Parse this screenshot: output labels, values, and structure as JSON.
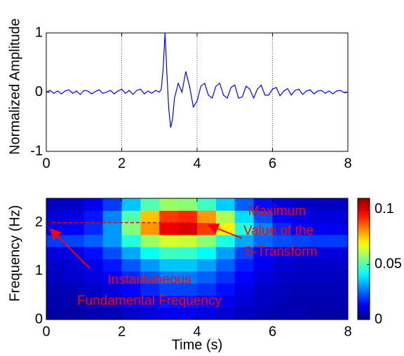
{
  "chart_data": [
    {
      "type": "line",
      "ylabel": "Normalized Amplitude",
      "xlim": [
        0,
        8
      ],
      "ylim": [
        -1,
        1
      ],
      "xticks": [
        0,
        2,
        4,
        6,
        8
      ],
      "yticks": [
        -1,
        0,
        1
      ],
      "grid": "x-dotted",
      "series": [
        {
          "color": "#0000ff",
          "x": [
            0,
            0.1,
            0.2,
            0.3,
            0.4,
            0.5,
            0.6,
            0.7,
            0.8,
            0.9,
            1.0,
            1.1,
            1.2,
            1.3,
            1.4,
            1.5,
            1.6,
            1.7,
            1.8,
            1.9,
            2.0,
            2.1,
            2.2,
            2.3,
            2.4,
            2.5,
            2.6,
            2.7,
            2.8,
            2.9,
            3.0,
            3.05,
            3.1,
            3.15,
            3.2,
            3.25,
            3.3,
            3.35,
            3.4,
            3.5,
            3.6,
            3.7,
            3.8,
            3.9,
            4.0,
            4.1,
            4.2,
            4.3,
            4.4,
            4.5,
            4.6,
            4.7,
            4.8,
            4.9,
            5.0,
            5.1,
            5.2,
            5.3,
            5.4,
            5.5,
            5.6,
            5.7,
            5.8,
            5.9,
            6.0,
            6.1,
            6.2,
            6.3,
            6.4,
            6.5,
            6.6,
            6.7,
            6.8,
            6.9,
            7.0,
            7.1,
            7.2,
            7.3,
            7.4,
            7.5,
            7.6,
            7.7,
            7.8,
            7.9,
            8.0
          ],
          "values": [
            0,
            0.03,
            -0.02,
            0.02,
            -0.03,
            0.02,
            0.04,
            -0.02,
            0.02,
            -0.04,
            0.03,
            0.02,
            -0.03,
            0.01,
            0.04,
            -0.02,
            0,
            0.03,
            -0.03,
            0.02,
            0.05,
            -0.02,
            0.03,
            -0.04,
            0.03,
            0.05,
            -0.03,
            0.02,
            -0.02,
            0.03,
            0,
            0.05,
            0.4,
            1.0,
            0.3,
            -0.3,
            -0.6,
            -0.45,
            -0.1,
            0.15,
            0,
            0.35,
            0.1,
            -0.25,
            -0.15,
            0.1,
            0.15,
            -0.05,
            -0.1,
            0.1,
            0.15,
            -0.05,
            -0.1,
            0.08,
            0.12,
            -0.1,
            -0.08,
            0.1,
            0.05,
            -0.1,
            0.05,
            0.12,
            -0.05,
            -0.05,
            0.05,
            0.08,
            -0.06,
            0.02,
            0.06,
            -0.05,
            0.03,
            0.05,
            -0.04,
            0.02,
            0.04,
            -0.03,
            0.02,
            0.03,
            -0.02,
            0.02,
            -0.03,
            0.02,
            0.03,
            -0.01,
            0
          ]
        }
      ]
    },
    {
      "type": "heatmap",
      "xlabel": "Time (s)",
      "ylabel": "Frequency (Hz)",
      "colormap": "jet",
      "xlim": [
        0,
        8
      ],
      "ylim": [
        0,
        2.5
      ],
      "xticks": [
        0,
        2,
        4,
        6,
        8
      ],
      "yticks": [
        0,
        1,
        2
      ],
      "clim": [
        0,
        0.11
      ],
      "cticks": [
        0,
        0.05,
        0.1
      ],
      "x": [
        0,
        0.5,
        1,
        1.5,
        2,
        2.5,
        3,
        3.5,
        4,
        4.5,
        5,
        5.5,
        6,
        6.5,
        7,
        7.5,
        8
      ],
      "y": [
        0,
        0.25,
        0.5,
        0.75,
        1,
        1.25,
        1.5,
        1.75,
        2,
        2.25,
        2.5
      ],
      "z": [
        [
          0.004,
          0.004,
          0.005,
          0.006,
          0.008,
          0.01,
          0.012,
          0.012,
          0.011,
          0.009,
          0.007,
          0.006,
          0.005,
          0.005,
          0.004,
          0.004
        ],
        [
          0.005,
          0.005,
          0.006,
          0.008,
          0.011,
          0.014,
          0.016,
          0.016,
          0.015,
          0.012,
          0.009,
          0.007,
          0.006,
          0.005,
          0.005,
          0.005
        ],
        [
          0.006,
          0.006,
          0.008,
          0.01,
          0.014,
          0.018,
          0.021,
          0.021,
          0.019,
          0.015,
          0.011,
          0.008,
          0.007,
          0.006,
          0.006,
          0.006
        ],
        [
          0.007,
          0.008,
          0.01,
          0.013,
          0.018,
          0.023,
          0.027,
          0.027,
          0.024,
          0.019,
          0.014,
          0.01,
          0.008,
          0.007,
          0.007,
          0.007
        ],
        [
          0.008,
          0.009,
          0.012,
          0.016,
          0.023,
          0.03,
          0.035,
          0.035,
          0.031,
          0.024,
          0.017,
          0.012,
          0.009,
          0.008,
          0.008,
          0.008
        ],
        [
          0.01,
          0.011,
          0.015,
          0.022,
          0.032,
          0.042,
          0.048,
          0.047,
          0.041,
          0.031,
          0.021,
          0.014,
          0.011,
          0.01,
          0.01,
          0.01
        ],
        [
          0.02,
          0.021,
          0.024,
          0.03,
          0.045,
          0.058,
          0.064,
          0.063,
          0.056,
          0.044,
          0.032,
          0.025,
          0.022,
          0.021,
          0.02,
          0.02
        ],
        [
          0.012,
          0.013,
          0.018,
          0.03,
          0.055,
          0.08,
          0.098,
          0.1,
          0.09,
          0.07,
          0.045,
          0.028,
          0.018,
          0.014,
          0.013,
          0.012
        ],
        [
          0.01,
          0.011,
          0.016,
          0.028,
          0.05,
          0.075,
          0.09,
          0.092,
          0.08,
          0.06,
          0.038,
          0.022,
          0.014,
          0.011,
          0.01,
          0.01
        ],
        [
          0.007,
          0.008,
          0.012,
          0.02,
          0.035,
          0.05,
          0.058,
          0.056,
          0.048,
          0.036,
          0.024,
          0.015,
          0.01,
          0.008,
          0.007,
          0.007
        ]
      ],
      "reference_line": {
        "y": 2,
        "x": [
          0,
          3.8
        ],
        "color": "#ff0000"
      },
      "annotations": [
        {
          "lines": [
            "Maximum",
            "Value of the",
            "S-Transform"
          ]
        },
        {
          "lines": [
            "Instantaneous",
            "Fundamental Frequency"
          ]
        }
      ]
    }
  ]
}
